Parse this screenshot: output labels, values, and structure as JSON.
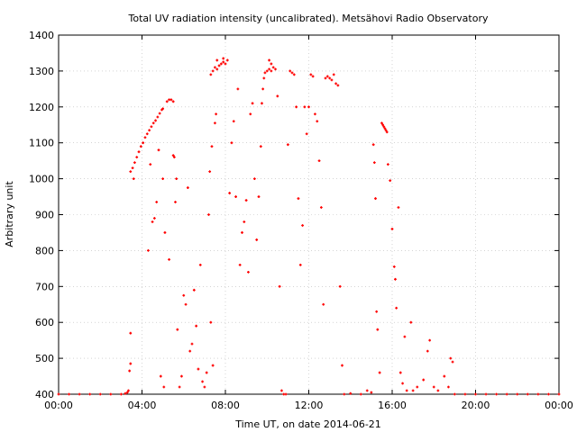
{
  "chart_data": {
    "type": "scatter",
    "title": "Total UV radiation intensity (uncalibrated). Metsähovi Radio Observatory",
    "xlabel": "Time UT, on date 2014-06-21",
    "ylabel": "Arbitrary unit",
    "x_unit": "hours UT",
    "xlim": [
      0,
      24
    ],
    "ylim": [
      400,
      1400
    ],
    "xticks": [
      0,
      4,
      8,
      12,
      16,
      20,
      24
    ],
    "xtick_labels": [
      "00:00",
      "04:00",
      "08:00",
      "12:00",
      "16:00",
      "20:00",
      "00:00"
    ],
    "yticks": [
      400,
      500,
      600,
      700,
      800,
      900,
      1000,
      1100,
      1200,
      1300,
      1400
    ],
    "ytick_labels": [
      "400",
      "500",
      "600",
      "700",
      "800",
      "900",
      "1000",
      "1100",
      "1200",
      "1300",
      "1400"
    ],
    "grid": true,
    "marker_color": "#ff0000",
    "series": [
      {
        "points": [
          [
            0.0,
            400
          ],
          [
            0.5,
            400
          ],
          [
            1.0,
            400
          ],
          [
            1.5,
            400
          ],
          [
            2.0,
            400
          ],
          [
            2.5,
            400
          ],
          [
            3.0,
            400
          ],
          [
            3.2,
            402
          ],
          [
            3.3,
            405
          ],
          [
            3.35,
            410
          ],
          [
            3.4,
            465
          ],
          [
            3.45,
            485
          ],
          [
            3.45,
            570
          ],
          [
            3.45,
            1020
          ],
          [
            3.55,
            1030
          ],
          [
            3.65,
            1045
          ],
          [
            3.75,
            1060
          ],
          [
            3.85,
            1075
          ],
          [
            3.95,
            1090
          ],
          [
            4.05,
            1100
          ],
          [
            4.15,
            1115
          ],
          [
            4.25,
            1125
          ],
          [
            4.35,
            1135
          ],
          [
            4.45,
            1145
          ],
          [
            4.55,
            1155
          ],
          [
            4.65,
            1162
          ],
          [
            4.75,
            1172
          ],
          [
            4.85,
            1182
          ],
          [
            4.95,
            1192
          ],
          [
            5.0,
            1195
          ],
          [
            3.6,
            1000
          ],
          [
            4.4,
            1040
          ],
          [
            4.5,
            880
          ],
          [
            4.6,
            890
          ],
          [
            4.3,
            800
          ],
          [
            4.8,
            1080
          ],
          [
            4.7,
            935
          ],
          [
            5.0,
            1000
          ],
          [
            4.9,
            450
          ],
          [
            5.05,
            420
          ],
          [
            5.1,
            850
          ],
          [
            5.2,
            1215
          ],
          [
            5.3,
            1220
          ],
          [
            5.4,
            1220
          ],
          [
            5.5,
            1215
          ],
          [
            5.3,
            775
          ],
          [
            5.5,
            1065
          ],
          [
            5.55,
            1060
          ],
          [
            5.6,
            935
          ],
          [
            5.65,
            1000
          ],
          [
            5.7,
            580
          ],
          [
            5.8,
            420
          ],
          [
            5.9,
            450
          ],
          [
            6.0,
            675
          ],
          [
            6.1,
            650
          ],
          [
            6.2,
            975
          ],
          [
            6.3,
            520
          ],
          [
            6.4,
            540
          ],
          [
            6.5,
            690
          ],
          [
            6.6,
            590
          ],
          [
            6.7,
            470
          ],
          [
            6.8,
            760
          ],
          [
            6.9,
            435
          ],
          [
            7.0,
            420
          ],
          [
            7.1,
            460
          ],
          [
            7.2,
            900
          ],
          [
            7.25,
            1020
          ],
          [
            7.3,
            600
          ],
          [
            7.35,
            1090
          ],
          [
            7.4,
            480
          ],
          [
            7.5,
            1155
          ],
          [
            7.55,
            1180
          ],
          [
            7.3,
            1290
          ],
          [
            7.4,
            1300
          ],
          [
            7.5,
            1310
          ],
          [
            7.6,
            1305
          ],
          [
            7.7,
            1315
          ],
          [
            7.8,
            1320
          ],
          [
            7.9,
            1325
          ],
          [
            8.0,
            1320
          ],
          [
            8.1,
            1330
          ],
          [
            7.6,
            1330
          ],
          [
            7.9,
            1335
          ],
          [
            8.2,
            960
          ],
          [
            8.3,
            1100
          ],
          [
            8.4,
            1160
          ],
          [
            8.5,
            950
          ],
          [
            8.6,
            1250
          ],
          [
            8.7,
            760
          ],
          [
            8.8,
            850
          ],
          [
            8.9,
            880
          ],
          [
            9.0,
            940
          ],
          [
            9.1,
            740
          ],
          [
            9.2,
            1180
          ],
          [
            9.3,
            1210
          ],
          [
            9.4,
            1000
          ],
          [
            9.5,
            830
          ],
          [
            9.6,
            950
          ],
          [
            9.7,
            1090
          ],
          [
            9.75,
            1210
          ],
          [
            9.8,
            1250
          ],
          [
            9.85,
            1280
          ],
          [
            9.9,
            1295
          ],
          [
            10.0,
            1300
          ],
          [
            10.1,
            1305
          ],
          [
            10.2,
            1300
          ],
          [
            10.3,
            1310
          ],
          [
            10.4,
            1305
          ],
          [
            10.1,
            1330
          ],
          [
            10.2,
            1320
          ],
          [
            10.5,
            1230
          ],
          [
            10.6,
            700
          ],
          [
            10.7,
            410
          ],
          [
            10.8,
            400
          ],
          [
            10.9,
            400
          ],
          [
            11.0,
            1095
          ],
          [
            11.1,
            1300
          ],
          [
            11.2,
            1295
          ],
          [
            11.3,
            1290
          ],
          [
            11.4,
            1200
          ],
          [
            11.5,
            945
          ],
          [
            11.6,
            760
          ],
          [
            11.7,
            870
          ],
          [
            11.8,
            1200
          ],
          [
            11.9,
            1125
          ],
          [
            12.0,
            1200
          ],
          [
            12.1,
            1290
          ],
          [
            12.2,
            1285
          ],
          [
            12.3,
            1180
          ],
          [
            12.4,
            1160
          ],
          [
            12.5,
            1050
          ],
          [
            12.6,
            920
          ],
          [
            12.7,
            650
          ],
          [
            12.8,
            1280
          ],
          [
            12.9,
            1285
          ],
          [
            13.0,
            1280
          ],
          [
            13.1,
            1275
          ],
          [
            13.2,
            1290
          ],
          [
            13.3,
            1265
          ],
          [
            13.4,
            1260
          ],
          [
            13.5,
            700
          ],
          [
            13.6,
            480
          ],
          [
            13.7,
            400
          ],
          [
            14.0,
            402
          ],
          [
            14.5,
            400
          ],
          [
            14.8,
            410
          ],
          [
            15.0,
            405
          ],
          [
            15.1,
            1095
          ],
          [
            15.15,
            1045
          ],
          [
            15.2,
            945
          ],
          [
            15.25,
            630
          ],
          [
            15.3,
            580
          ],
          [
            15.4,
            460
          ],
          [
            15.5,
            1155
          ],
          [
            15.55,
            1150
          ],
          [
            15.6,
            1145
          ],
          [
            15.65,
            1140
          ],
          [
            15.7,
            1135
          ],
          [
            15.75,
            1130
          ],
          [
            15.8,
            1040
          ],
          [
            15.9,
            995
          ],
          [
            16.0,
            860
          ],
          [
            16.1,
            755
          ],
          [
            16.15,
            720
          ],
          [
            16.2,
            640
          ],
          [
            16.3,
            920
          ],
          [
            16.4,
            460
          ],
          [
            16.5,
            430
          ],
          [
            16.6,
            560
          ],
          [
            16.7,
            410
          ],
          [
            16.9,
            600
          ],
          [
            17.0,
            410
          ],
          [
            17.2,
            420
          ],
          [
            17.5,
            440
          ],
          [
            17.7,
            520
          ],
          [
            17.8,
            550
          ],
          [
            18.0,
            420
          ],
          [
            18.2,
            410
          ],
          [
            18.5,
            450
          ],
          [
            18.7,
            420
          ],
          [
            18.8,
            500
          ],
          [
            18.9,
            490
          ],
          [
            19.0,
            400
          ],
          [
            19.5,
            400
          ],
          [
            20.0,
            400
          ],
          [
            20.5,
            400
          ],
          [
            21.0,
            400
          ],
          [
            21.5,
            400
          ],
          [
            22.0,
            400
          ],
          [
            22.5,
            400
          ],
          [
            23.0,
            400
          ],
          [
            23.5,
            400
          ],
          [
            24.0,
            400
          ]
        ]
      }
    ]
  }
}
